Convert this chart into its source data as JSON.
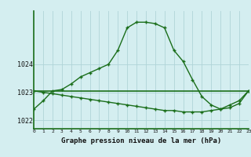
{
  "hours": [
    0,
    1,
    2,
    3,
    4,
    5,
    6,
    7,
    8,
    9,
    10,
    11,
    12,
    13,
    14,
    15,
    16,
    17,
    18,
    19,
    20,
    21,
    22,
    23
  ],
  "line1": [
    1022.4,
    1022.7,
    1023.05,
    1023.1,
    1023.3,
    1023.55,
    1023.7,
    1023.85,
    1024.0,
    1024.5,
    1025.3,
    1025.5,
    1025.5,
    1025.45,
    1025.3,
    1024.5,
    1024.1,
    1023.45,
    1022.85,
    1022.55,
    1022.4,
    1022.55,
    1022.7,
    1023.05
  ],
  "line2": [
    1023.05,
    1023.05,
    1023.05,
    1023.05,
    1023.05,
    1023.05,
    1023.05,
    1023.05,
    1023.05,
    1023.05,
    1023.05,
    1023.05,
    1023.05,
    1023.05,
    1023.05,
    1023.05,
    1023.05,
    1023.05,
    1023.05,
    1023.05,
    1023.05,
    1023.05,
    1023.05,
    1023.05
  ],
  "line3": [
    1023.05,
    1023.0,
    1022.95,
    1022.9,
    1022.85,
    1022.8,
    1022.75,
    1022.7,
    1022.65,
    1022.6,
    1022.55,
    1022.5,
    1022.45,
    1022.4,
    1022.35,
    1022.35,
    1022.3,
    1022.3,
    1022.3,
    1022.35,
    1022.4,
    1022.45,
    1022.6,
    1023.05
  ],
  "line_color": "#1a6e1a",
  "bg_color": "#d4eef0",
  "grid_color": "#b0d4d8",
  "xlabel": "Graphe pression niveau de la mer (hPa)",
  "yticks": [
    1022,
    1023,
    1024
  ],
  "ylim": [
    1021.7,
    1025.9
  ],
  "xlim": [
    0,
    23
  ]
}
